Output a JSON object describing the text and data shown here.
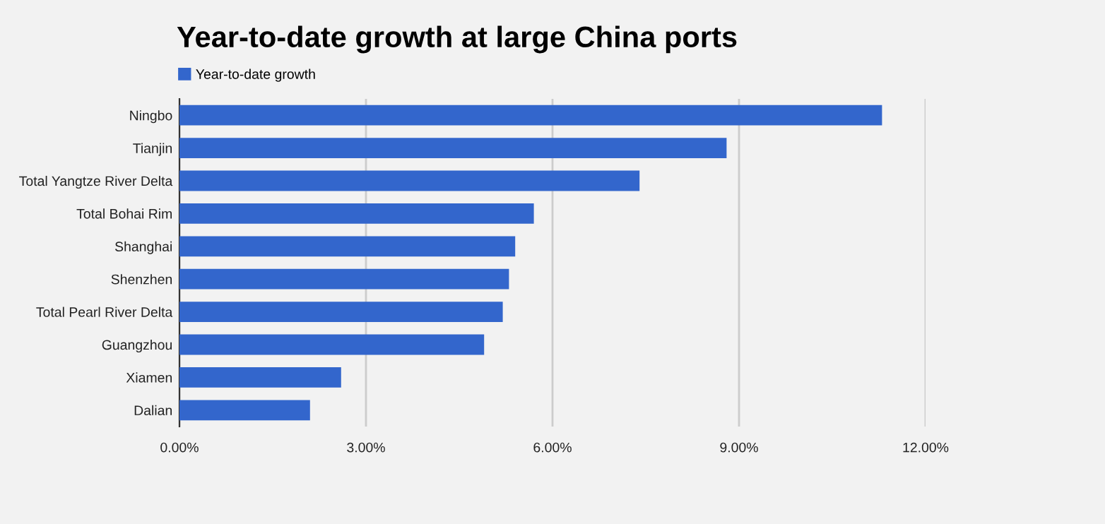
{
  "chart_data": {
    "type": "bar",
    "orientation": "horizontal",
    "title": "Year-to-date growth at large China ports",
    "categories": [
      "Ningbo",
      "Tianjin",
      "Total Yangtze River Delta",
      "Total Bohai Rim",
      "Shanghai",
      "Shenzhen",
      "Total Pearl River Delta",
      "Guangzhou",
      "Xiamen",
      "Dalian"
    ],
    "series": [
      {
        "name": "Year-to-date growth",
        "color": "#3366cc",
        "values": [
          11.3,
          8.8,
          7.4,
          5.7,
          5.4,
          5.3,
          5.2,
          4.9,
          2.6,
          2.1
        ]
      }
    ],
    "xlim": [
      0,
      12
    ],
    "xticks": [
      {
        "value": 0,
        "label": "0.00%"
      },
      {
        "value": 3,
        "label": "3.00%"
      },
      {
        "value": 6,
        "label": "6.00%"
      },
      {
        "value": 9,
        "label": "9.00%"
      },
      {
        "value": 12,
        "label": "12.00%"
      }
    ],
    "grid": "x",
    "legend": "top left"
  }
}
